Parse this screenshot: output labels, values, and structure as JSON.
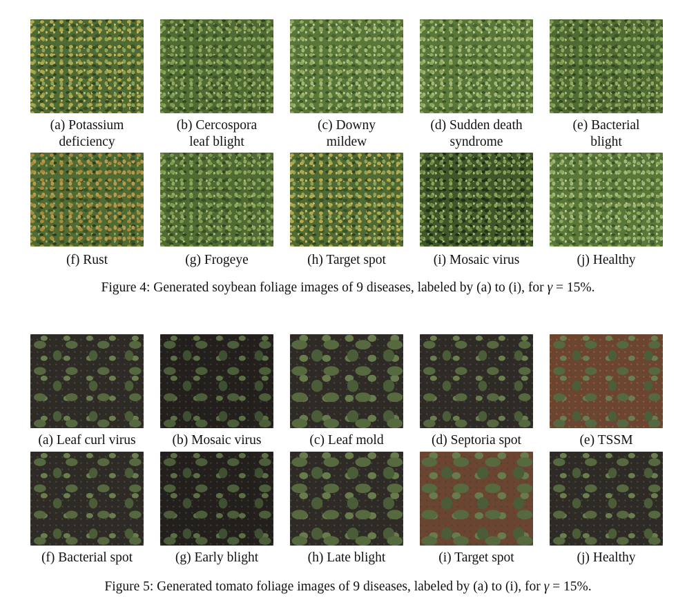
{
  "figure4": {
    "row1": [
      {
        "line1": "(a) Potassium",
        "line2": "deficiency"
      },
      {
        "line1": "(b) Cercospora",
        "line2": "leaf blight"
      },
      {
        "line1": "(c) Downy",
        "line2": "mildew"
      },
      {
        "line1": "(d) Sudden death",
        "line2": "syndrome"
      },
      {
        "line1": "(e) Bacterial",
        "line2": "blight"
      }
    ],
    "row2": [
      {
        "line1": "(f) Rust"
      },
      {
        "line1": "(g) Frogeye"
      },
      {
        "line1": "(h) Target spot"
      },
      {
        "line1": "(i) Mosaic virus"
      },
      {
        "line1": "(j) Healthy"
      }
    ],
    "caption_prefix": "Figure 4: Generated soybean foliage images of 9 diseases, labeled by (a) to (i), for ",
    "caption_symbol": "γ",
    "caption_suffix": " = 15%."
  },
  "figure5": {
    "row1": [
      {
        "line1": "(a) Leaf curl virus"
      },
      {
        "line1": "(b) Mosaic virus"
      },
      {
        "line1": "(c) Leaf mold"
      },
      {
        "line1": "(d) Septoria spot"
      },
      {
        "line1": "(e) TSSM"
      }
    ],
    "row2": [
      {
        "line1": "(f) Bacterial spot"
      },
      {
        "line1": "(g) Early blight"
      },
      {
        "line1": "(h) Late blight"
      },
      {
        "line1": "(i) Target spot"
      },
      {
        "line1": "(j) Healthy"
      }
    ],
    "caption_prefix": "Figure 5: Generated tomato foliage images of 9 diseases, labeled by (a) to (i), for ",
    "caption_symbol": "γ",
    "caption_suffix": " = 15%."
  }
}
